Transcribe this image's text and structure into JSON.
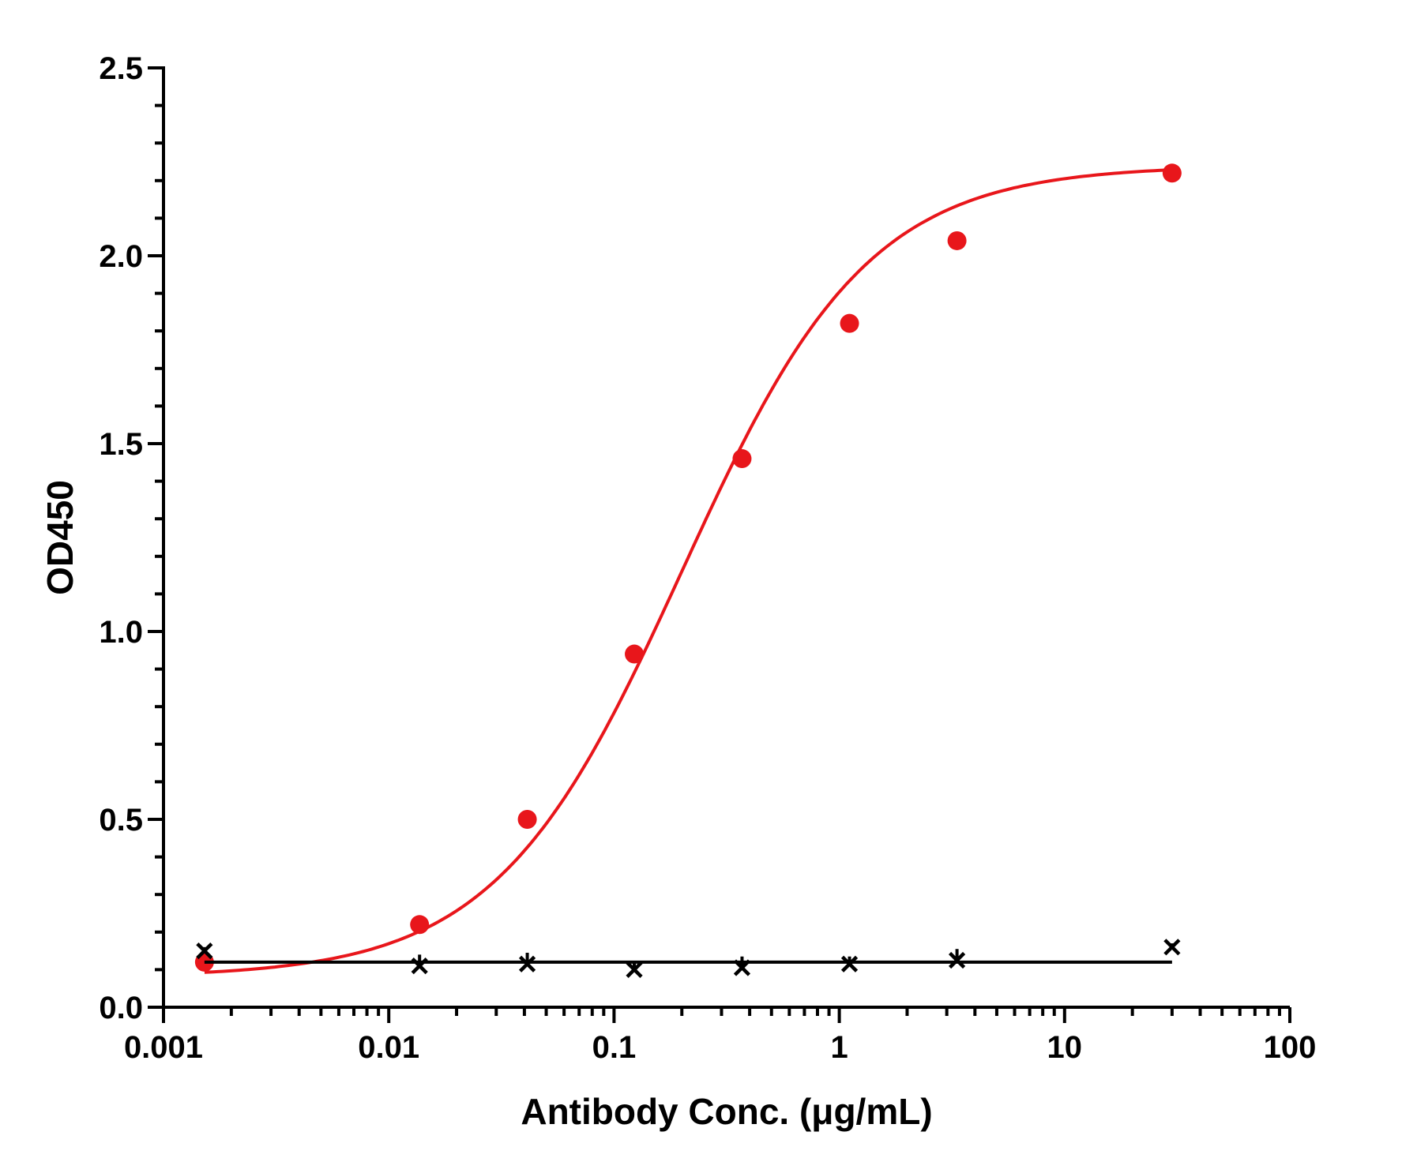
{
  "chart_data": {
    "type": "scatter",
    "title": "",
    "xlabel": "Antibody Conc. (μg/mL)",
    "ylabel": "OD450",
    "x_scale": "log",
    "xlim": [
      0.001,
      100
    ],
    "ylim": [
      0,
      2.5
    ],
    "x_ticks": [
      {
        "value": 0.001,
        "label": "0.001"
      },
      {
        "value": 0.01,
        "label": "0.01"
      },
      {
        "value": 0.1,
        "label": "0.1"
      },
      {
        "value": 1,
        "label": "1"
      },
      {
        "value": 10,
        "label": "10"
      },
      {
        "value": 100,
        "label": "100"
      }
    ],
    "y_ticks": [
      {
        "value": 0,
        "label": "0.0"
      },
      {
        "value": 0.5,
        "label": "0.5"
      },
      {
        "value": 1.0,
        "label": "1.0"
      },
      {
        "value": 1.5,
        "label": "1.5"
      },
      {
        "value": 2.0,
        "label": "2.0"
      },
      {
        "value": 2.5,
        "label": "2.5"
      }
    ],
    "y_minor_step": 0.1,
    "grid": false,
    "legend": "none",
    "series": [
      {
        "marker": "circle",
        "color": "#e8161b",
        "fit": "4PL",
        "x": [
          0.00152,
          0.0137,
          0.0412,
          0.123,
          0.37,
          1.11,
          3.33,
          30
        ],
        "y": [
          0.12,
          0.22,
          0.5,
          0.94,
          1.46,
          1.82,
          2.04,
          2.22
        ],
        "curve": {
          "bottom": 0.08,
          "top": 2.24,
          "ec50": 0.2,
          "hill": 1.05
        }
      },
      {
        "marker": "x",
        "color": "#000000",
        "fit": "flat",
        "x": [
          0.00152,
          0.0137,
          0.0412,
          0.123,
          0.37,
          1.11,
          3.33,
          30
        ],
        "y": [
          0.15,
          0.11,
          0.115,
          0.1,
          0.105,
          0.115,
          0.125,
          0.16
        ],
        "error": [
          0.01,
          0.03,
          0.03,
          0.02,
          0.03,
          0.02,
          0.03,
          0.01
        ],
        "curve": {
          "level": 0.12
        }
      }
    ]
  }
}
